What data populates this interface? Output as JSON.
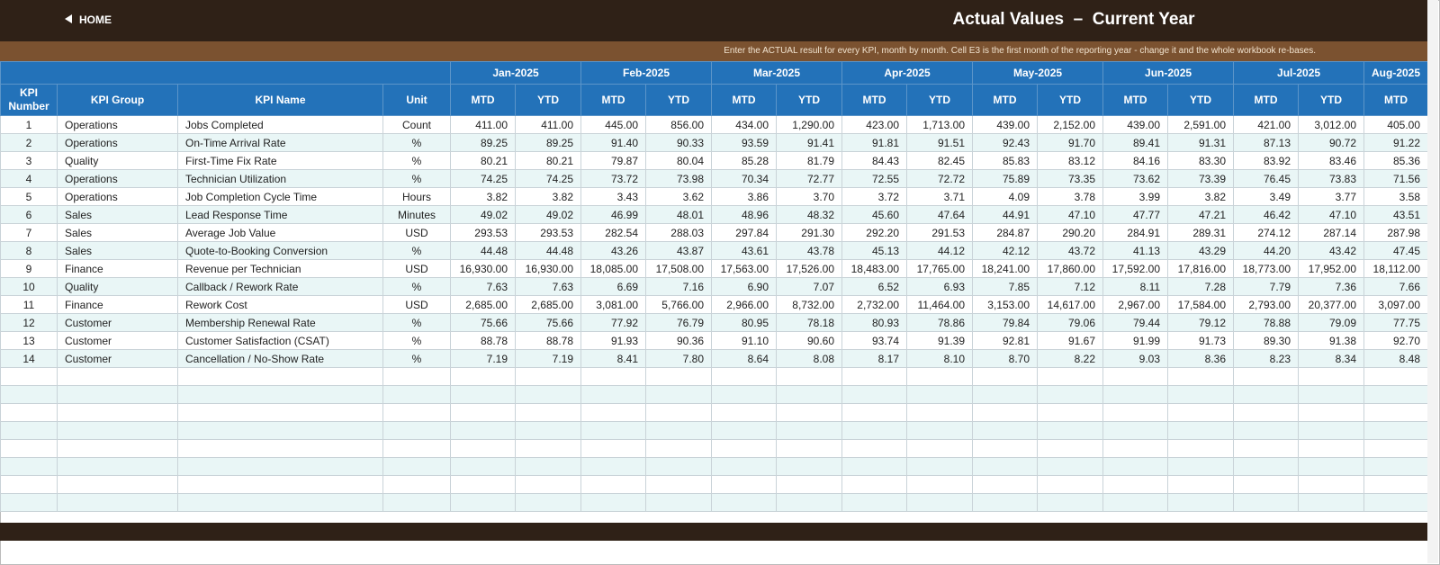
{
  "header": {
    "home": "HOME",
    "title": "Actual Values  –  Current Year",
    "instructions": "Enter the ACTUAL result for every KPI, month by month. Cell E3 is the first month of the reporting year - change it and the whole workbook re-bases."
  },
  "table": {
    "columns": [
      "KPI Number",
      "KPI Group",
      "KPI Name",
      "Unit"
    ],
    "months": [
      "Jan-2025",
      "Feb-2025",
      "Mar-2025",
      "Apr-2025",
      "May-2025",
      "Jun-2025",
      "Jul-2025",
      "Aug-2025"
    ],
    "mtd": "MTD",
    "ytd": "YTD",
    "rows": [
      [
        1,
        "Operations",
        "Jobs Completed",
        "Count",
        "411.00",
        "411.00",
        "445.00",
        "856.00",
        "434.00",
        "1,290.00",
        "423.00",
        "1,713.00",
        "439.00",
        "2,152.00",
        "439.00",
        "2,591.00",
        "421.00",
        "3,012.00",
        "405.00"
      ],
      [
        2,
        "Operations",
        "On-Time Arrival Rate",
        "%",
        "89.25",
        "89.25",
        "91.40",
        "90.33",
        "93.59",
        "91.41",
        "91.81",
        "91.51",
        "92.43",
        "91.70",
        "89.41",
        "91.31",
        "87.13",
        "90.72",
        "91.22"
      ],
      [
        3,
        "Quality",
        "First-Time Fix Rate",
        "%",
        "80.21",
        "80.21",
        "79.87",
        "80.04",
        "85.28",
        "81.79",
        "84.43",
        "82.45",
        "85.83",
        "83.12",
        "84.16",
        "83.30",
        "83.92",
        "83.46",
        "85.36"
      ],
      [
        4,
        "Operations",
        "Technician Utilization",
        "%",
        "74.25",
        "74.25",
        "73.72",
        "73.98",
        "70.34",
        "72.77",
        "72.55",
        "72.72",
        "75.89",
        "73.35",
        "73.62",
        "73.39",
        "76.45",
        "73.83",
        "71.56"
      ],
      [
        5,
        "Operations",
        "Job Completion Cycle Time",
        "Hours",
        "3.82",
        "3.82",
        "3.43",
        "3.62",
        "3.86",
        "3.70",
        "3.72",
        "3.71",
        "4.09",
        "3.78",
        "3.99",
        "3.82",
        "3.49",
        "3.77",
        "3.58"
      ],
      [
        6,
        "Sales",
        "Lead Response Time",
        "Minutes",
        "49.02",
        "49.02",
        "46.99",
        "48.01",
        "48.96",
        "48.32",
        "45.60",
        "47.64",
        "44.91",
        "47.10",
        "47.77",
        "47.21",
        "46.42",
        "47.10",
        "43.51"
      ],
      [
        7,
        "Sales",
        "Average Job Value",
        "USD",
        "293.53",
        "293.53",
        "282.54",
        "288.03",
        "297.84",
        "291.30",
        "292.20",
        "291.53",
        "284.87",
        "290.20",
        "284.91",
        "289.31",
        "274.12",
        "287.14",
        "287.98"
      ],
      [
        8,
        "Sales",
        "Quote-to-Booking Conversion",
        "%",
        "44.48",
        "44.48",
        "43.26",
        "43.87",
        "43.61",
        "43.78",
        "45.13",
        "44.12",
        "42.12",
        "43.72",
        "41.13",
        "43.29",
        "44.20",
        "43.42",
        "47.45"
      ],
      [
        9,
        "Finance",
        "Revenue per Technician",
        "USD",
        "16,930.00",
        "16,930.00",
        "18,085.00",
        "17,508.00",
        "17,563.00",
        "17,526.00",
        "18,483.00",
        "17,765.00",
        "18,241.00",
        "17,860.00",
        "17,592.00",
        "17,816.00",
        "18,773.00",
        "17,952.00",
        "18,112.00"
      ],
      [
        10,
        "Quality",
        "Callback / Rework Rate",
        "%",
        "7.63",
        "7.63",
        "6.69",
        "7.16",
        "6.90",
        "7.07",
        "6.52",
        "6.93",
        "7.85",
        "7.12",
        "8.11",
        "7.28",
        "7.79",
        "7.36",
        "7.66"
      ],
      [
        11,
        "Finance",
        "Rework Cost",
        "USD",
        "2,685.00",
        "2,685.00",
        "3,081.00",
        "5,766.00",
        "2,966.00",
        "8,732.00",
        "2,732.00",
        "11,464.00",
        "3,153.00",
        "14,617.00",
        "2,967.00",
        "17,584.00",
        "2,793.00",
        "20,377.00",
        "3,097.00"
      ],
      [
        12,
        "Customer",
        "Membership Renewal Rate",
        "%",
        "75.66",
        "75.66",
        "77.92",
        "76.79",
        "80.95",
        "78.18",
        "80.93",
        "78.86",
        "79.84",
        "79.06",
        "79.44",
        "79.12",
        "78.88",
        "79.09",
        "77.75"
      ],
      [
        13,
        "Customer",
        "Customer Satisfaction (CSAT)",
        "%",
        "88.78",
        "88.78",
        "91.93",
        "90.36",
        "91.10",
        "90.60",
        "93.74",
        "91.39",
        "92.81",
        "91.67",
        "91.99",
        "91.73",
        "89.30",
        "91.38",
        "92.70"
      ],
      [
        14,
        "Customer",
        "Cancellation / No-Show Rate",
        "%",
        "7.19",
        "7.19",
        "8.41",
        "7.80",
        "8.64",
        "8.08",
        "8.17",
        "8.10",
        "8.70",
        "8.22",
        "9.03",
        "8.36",
        "8.23",
        "8.34",
        "8.48"
      ]
    ]
  }
}
